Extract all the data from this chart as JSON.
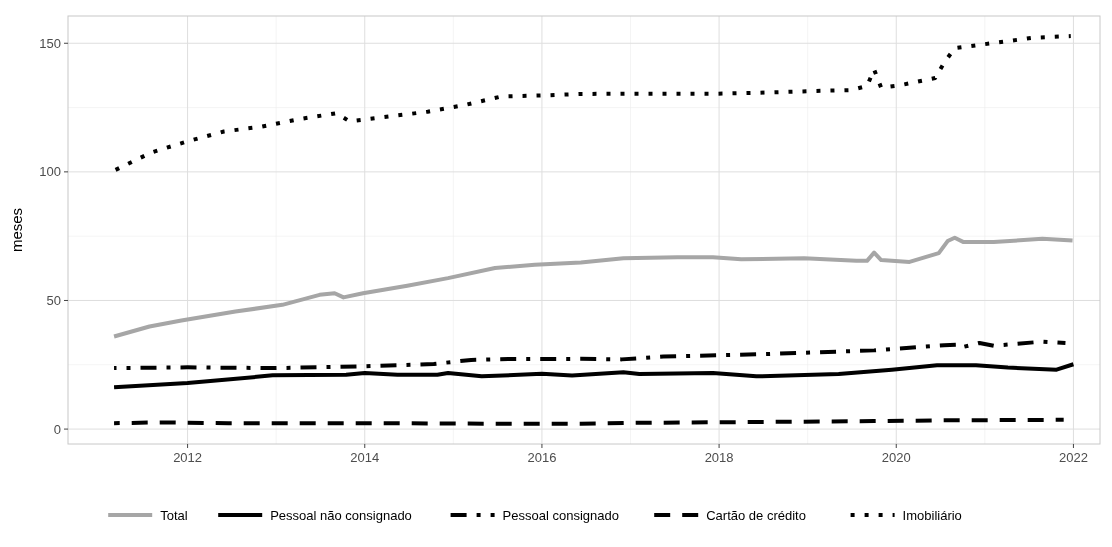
{
  "chart_data": {
    "type": "line",
    "ylabel": "meses",
    "xlim": [
      2010.65,
      2022.3
    ],
    "xticks": [
      2012,
      2014,
      2016,
      2018,
      2020,
      2022
    ],
    "ylim": [
      -5.8,
      160.6
    ],
    "yticks": [
      0,
      50,
      100,
      150
    ],
    "grid": true,
    "legend": "bottom",
    "series": [
      {
        "name": "Total",
        "color": "#a6a6a6",
        "line_style": "solid",
        "x": [
          2011.17,
          2011.57,
          2011.93,
          2012.54,
          2013.07,
          2013.49,
          2013.66,
          2013.76,
          2013.98,
          2014.48,
          2014.94,
          2015.47,
          2015.92,
          2016.44,
          2016.92,
          2017.53,
          2017.93,
          2018.25,
          2018.96,
          2019.55,
          2019.67,
          2019.75,
          2019.83,
          2020.15,
          2020.48,
          2020.58,
          2020.66,
          2020.76,
          2021.1,
          2021.65,
          2021.99
        ],
        "values": [
          36.0,
          39.9,
          42.2,
          45.7,
          48.3,
          52.2,
          52.8,
          51.2,
          52.8,
          55.7,
          58.7,
          62.6,
          63.9,
          64.8,
          66.4,
          66.8,
          66.8,
          66.0,
          66.4,
          65.4,
          65.4,
          68.6,
          65.7,
          65.0,
          68.4,
          73.1,
          74.4,
          72.7,
          72.7,
          74.0,
          73.3
        ]
      },
      {
        "name": "Pessoal não consignado",
        "color": "#000000",
        "line_style": "solid",
        "x": [
          2011.17,
          2012.0,
          2012.84,
          2012.96,
          2013.79,
          2014.0,
          2014.37,
          2014.82,
          2014.94,
          2015.32,
          2016.0,
          2016.34,
          2016.92,
          2017.1,
          2017.93,
          2018.42,
          2019.35,
          2019.95,
          2020.46,
          2020.9,
          2021.26,
          2021.81,
          2022.0
        ],
        "values": [
          16.3,
          17.9,
          20.5,
          20.9,
          21.1,
          21.8,
          21.1,
          21.1,
          21.8,
          20.5,
          21.5,
          20.8,
          22.1,
          21.4,
          21.8,
          20.5,
          21.4,
          23.1,
          24.8,
          24.8,
          23.9,
          23.1,
          25.2
        ]
      },
      {
        "name": "Pessoal consignado",
        "color": "#000000",
        "line_style": "dashdot",
        "x": [
          2011.17,
          2012.0,
          2012.99,
          2013.98,
          2014.78,
          2015.2,
          2015.62,
          2016.44,
          2016.9,
          2017.37,
          2018.56,
          2019.75,
          2020.54,
          2020.72,
          2020.74,
          2020.94,
          2021.1,
          2021.65,
          2021.91
        ],
        "values": [
          23.7,
          24.0,
          23.7,
          24.4,
          25.3,
          26.9,
          27.2,
          27.3,
          27.1,
          28.2,
          29.2,
          30.6,
          32.6,
          32.8,
          31.8,
          33.5,
          32.4,
          34.0,
          33.5
        ]
      },
      {
        "name": "Cartão de crédito",
        "color": "#000000",
        "line_style": "dashed",
        "x": [
          2011.17,
          2011.7,
          2012.46,
          2013.98,
          2015.5,
          2016.44,
          2016.98,
          2018.17,
          2019.75,
          2020.54,
          2021.89
        ],
        "values": [
          2.3,
          2.6,
          2.3,
          2.3,
          2.1,
          2.1,
          2.4,
          2.7,
          3.1,
          3.4,
          3.6
        ]
      },
      {
        "name": "Imobiliário",
        "color": "#000000",
        "line_style": "dotted",
        "x": [
          2011.17,
          2011.59,
          2011.99,
          2012.41,
          2012.84,
          2013.26,
          2013.68,
          2013.83,
          2014.27,
          2014.71,
          2015.13,
          2015.54,
          2016.0,
          2016.44,
          2017.08,
          2017.97,
          2018.4,
          2019.04,
          2019.49,
          2019.67,
          2019.75,
          2019.83,
          2020.03,
          2020.44,
          2020.54,
          2020.66,
          2021.1,
          2021.53,
          2021.97
        ],
        "values": [
          100.5,
          107.5,
          111.8,
          115.7,
          117.6,
          120.5,
          122.8,
          119.6,
          121.5,
          123.4,
          126.0,
          129.3,
          129.7,
          130.3,
          130.4,
          130.4,
          130.7,
          131.4,
          131.8,
          133.4,
          139.8,
          132.7,
          133.6,
          136.5,
          142.4,
          148.1,
          150.1,
          152.1,
          152.8
        ]
      }
    ]
  }
}
